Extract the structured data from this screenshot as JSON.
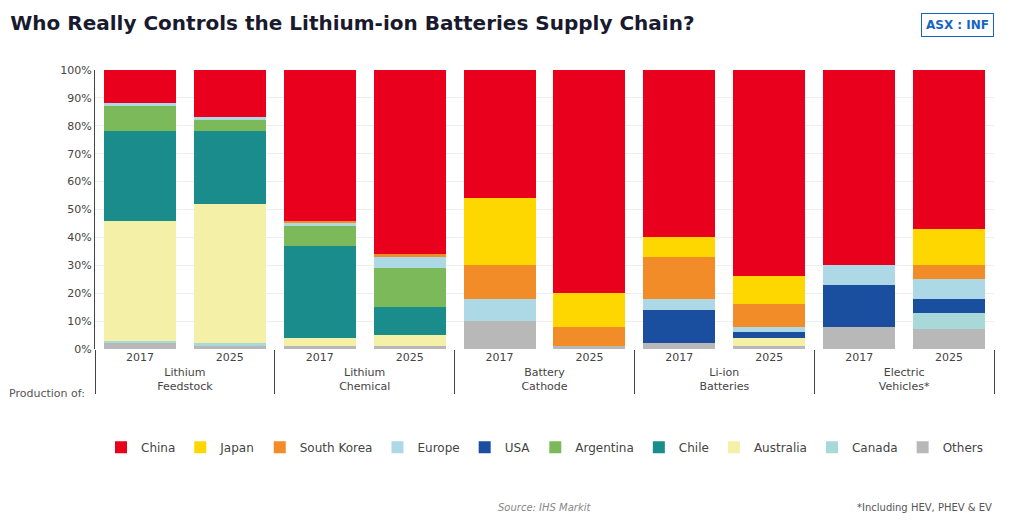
{
  "chart_data": {
    "type": "bar",
    "title": "Who Really Controls the Lithium-ion Batteries Supply Chain?",
    "stacked": true,
    "categories": [
      [
        "Lithium\nFeedstock",
        "2017"
      ],
      [
        "Lithium\nFeedstock",
        "2025"
      ],
      [
        "Lithium\nChemical",
        "2017"
      ],
      [
        "Lithium\nChemical",
        "2025"
      ],
      [
        "Battery\nCathode",
        "2017"
      ],
      [
        "Battery\nCathode",
        "2025"
      ],
      [
        "Li-ion\nBatteries",
        "2017"
      ],
      [
        "Li-ion\nBatteries",
        "2025"
      ],
      [
        "Electric\nVehicles*",
        "2017"
      ],
      [
        "Electric\nVehicles*",
        "2025"
      ]
    ],
    "series": [
      {
        "name": "Others",
        "color": "#B8B8B8",
        "values": [
          2,
          1,
          1,
          1,
          10,
          1,
          2,
          1,
          8,
          7
        ]
      },
      {
        "name": "Canada",
        "color": "#A8D8D8",
        "values": [
          1,
          1,
          0,
          0,
          0,
          0,
          0,
          0,
          0,
          6
        ]
      },
      {
        "name": "Australia",
        "color": "#F5F0A8",
        "values": [
          43,
          50,
          3,
          4,
          0,
          0,
          0,
          3,
          0,
          0
        ]
      },
      {
        "name": "Chile",
        "color": "#1A8C8C",
        "values": [
          32,
          26,
          33,
          10,
          0,
          0,
          0,
          0,
          0,
          0
        ]
      },
      {
        "name": "Argentina",
        "color": "#7CB95A",
        "values": [
          9,
          4,
          7,
          14,
          0,
          0,
          0,
          0,
          0,
          0
        ]
      },
      {
        "name": "USA",
        "color": "#1A4FA0",
        "values": [
          0,
          0,
          0,
          0,
          0,
          0,
          12,
          2,
          15,
          5
        ]
      },
      {
        "name": "Europe",
        "color": "#ADD8E6",
        "values": [
          1,
          1,
          1,
          4,
          8,
          0,
          4,
          2,
          7,
          7
        ]
      },
      {
        "name": "South Korea",
        "color": "#F28C28",
        "values": [
          0,
          0,
          1,
          1,
          12,
          7,
          15,
          8,
          0,
          5
        ]
      },
      {
        "name": "Japan",
        "color": "#FFD700",
        "values": [
          0,
          0,
          0,
          0,
          24,
          12,
          7,
          10,
          0,
          13
        ]
      },
      {
        "name": "China",
        "color": "#E8001C",
        "values": [
          12,
          17,
          54,
          66,
          46,
          80,
          60,
          74,
          70,
          57
        ]
      }
    ],
    "ylim": [
      0,
      100
    ],
    "yticks": [
      {
        "value": 0,
        "label": "0%"
      },
      {
        "value": 10,
        "label": "10%"
      },
      {
        "value": 20,
        "label": "20%"
      },
      {
        "value": 30,
        "label": "30%"
      },
      {
        "value": 40,
        "label": "40%"
      },
      {
        "value": 50,
        "label": "50%"
      },
      {
        "value": 60,
        "label": "60%"
      },
      {
        "value": 70,
        "label": "70%"
      },
      {
        "value": 80,
        "label": "80%"
      },
      {
        "value": 90,
        "label": "90%"
      },
      {
        "value": 100,
        "label": "100%"
      }
    ],
    "grid": true,
    "legend": "bottom",
    "annotations": [
      "Production of:",
      "Source: IHS Markit",
      "*Including HEV, PHEV & EV",
      "ASX : INF"
    ]
  }
}
